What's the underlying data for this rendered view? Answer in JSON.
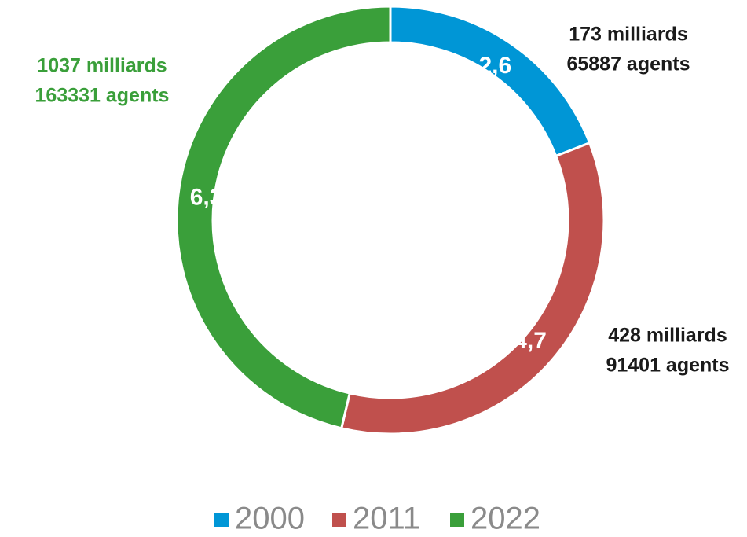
{
  "chart_data": {
    "type": "donut",
    "categories": [
      "2000",
      "2011",
      "2022"
    ],
    "values": [
      2.6,
      4.7,
      6.3
    ],
    "value_labels": [
      "2,6",
      "4,7",
      "6,3"
    ],
    "colors": [
      "#0096d6",
      "#c0504d",
      "#3a9f3a"
    ],
    "annotations": [
      [
        "173 milliards",
        "65887 agents"
      ],
      [
        "428 milliards",
        "91401 agents"
      ],
      [
        "1037 milliards",
        "163331 agents"
      ]
    ],
    "legend": "bottom"
  }
}
